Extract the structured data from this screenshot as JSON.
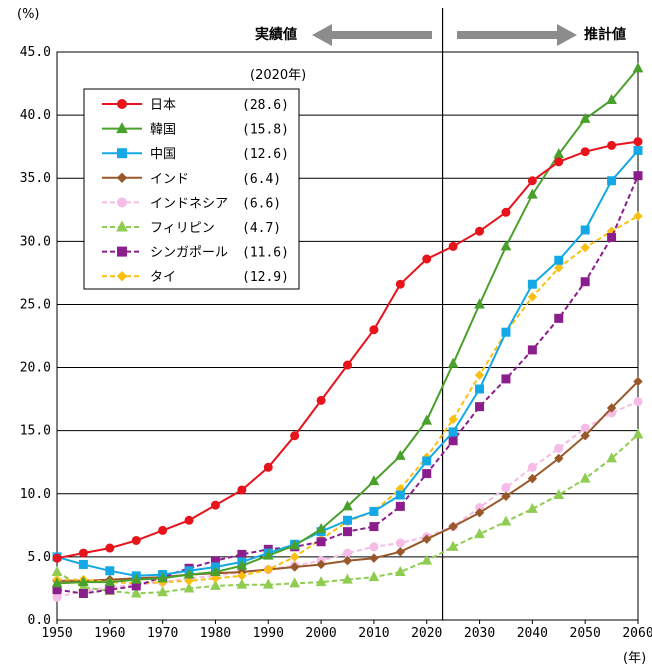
{
  "chart_data": {
    "type": "line",
    "y_unit": "(%)",
    "x_unit": "(年)",
    "legend_header": "(2020年)",
    "divider_year": 2023,
    "actual_label": "実績値",
    "projection_label": "推計値",
    "xlim": [
      1950,
      2060
    ],
    "ylim": [
      0,
      45
    ],
    "x_ticks": [
      "1950",
      "1960",
      "1970",
      "1980",
      "1990",
      "2000",
      "2010",
      "2020",
      "2030",
      "2040",
      "2050",
      "2060"
    ],
    "y_ticks": [
      "0.0",
      "5.0",
      "10.0",
      "15.0",
      "20.0",
      "25.0",
      "30.0",
      "35.0",
      "40.0",
      "45.0"
    ],
    "grid": "horizontal",
    "legend_position": "top-left",
    "x": [
      1950,
      1955,
      1960,
      1965,
      1970,
      1975,
      1980,
      1985,
      1990,
      1995,
      2000,
      2005,
      2010,
      2015,
      2020,
      2025,
      2030,
      2035,
      2040,
      2045,
      2050,
      2055,
      2060
    ],
    "series": [
      {
        "name": "日本",
        "value_2020": "(28.6)",
        "color": "#e8131b",
        "marker": "circle",
        "dash": false,
        "values": [
          4.9,
          5.3,
          5.7,
          6.3,
          7.1,
          7.9,
          9.1,
          10.3,
          12.1,
          14.6,
          17.4,
          20.2,
          23.0,
          26.6,
          28.6,
          29.6,
          30.8,
          32.3,
          34.8,
          36.3,
          37.1,
          37.6,
          37.9
        ]
      },
      {
        "name": "韓国",
        "value_2020": "(15.8)",
        "color": "#4aa02c",
        "marker": "triangle",
        "dash": false,
        "values": [
          2.9,
          3.0,
          3.0,
          3.2,
          3.3,
          3.6,
          3.8,
          4.3,
          5.1,
          5.9,
          7.2,
          9.0,
          11.0,
          13.0,
          15.8,
          20.3,
          25.0,
          29.6,
          33.7,
          36.9,
          39.7,
          41.2,
          43.7
        ]
      },
      {
        "name": "中国",
        "value_2020": "(12.6)",
        "color": "#14a9e6",
        "marker": "square",
        "dash": false,
        "values": [
          5.0,
          4.4,
          3.9,
          3.5,
          3.6,
          3.9,
          4.2,
          4.6,
          5.3,
          6.0,
          7.0,
          7.9,
          8.6,
          9.9,
          12.6,
          14.9,
          18.3,
          22.8,
          26.6,
          28.5,
          30.9,
          34.8,
          37.2
        ]
      },
      {
        "name": "インド",
        "value_2020": "(6.4)",
        "color": "#99582a",
        "marker": "diamond",
        "dash": false,
        "values": [
          3.1,
          3.1,
          3.2,
          3.3,
          3.4,
          3.6,
          3.7,
          3.8,
          4.0,
          4.2,
          4.4,
          4.7,
          4.9,
          5.4,
          6.4,
          7.4,
          8.5,
          9.8,
          11.2,
          12.8,
          14.6,
          16.8,
          18.9
        ]
      },
      {
        "name": "インドネシア",
        "value_2020": "(6.6)",
        "color": "#f4bce6",
        "marker": "circle",
        "dash": true,
        "values": [
          1.8,
          2.3,
          2.6,
          2.8,
          3.0,
          3.3,
          3.5,
          3.8,
          4.0,
          4.3,
          4.7,
          5.3,
          5.8,
          6.1,
          6.6,
          7.4,
          8.9,
          10.5,
          12.1,
          13.6,
          15.2,
          16.4,
          17.3
        ]
      },
      {
        "name": "フィリピン",
        "value_2020": "(4.7)",
        "color": "#8fcc52",
        "marker": "triangle",
        "dash": true,
        "values": [
          3.8,
          2.6,
          2.3,
          2.1,
          2.2,
          2.5,
          2.7,
          2.8,
          2.8,
          2.9,
          3.0,
          3.2,
          3.4,
          3.8,
          4.7,
          5.8,
          6.8,
          7.8,
          8.8,
          9.9,
          11.2,
          12.8,
          14.7
        ]
      },
      {
        "name": "シンガポール",
        "value_2020": "(11.6)",
        "color": "#8b1e8c",
        "marker": "square",
        "dash": true,
        "values": [
          2.4,
          2.1,
          2.4,
          2.7,
          3.4,
          4.1,
          4.7,
          5.2,
          5.6,
          5.8,
          6.2,
          7.0,
          7.4,
          9.0,
          11.6,
          14.2,
          16.9,
          19.1,
          21.4,
          23.9,
          26.8,
          30.3,
          35.2
        ]
      },
      {
        "name": "タイ",
        "value_2020": "(12.9)",
        "color": "#fbbf12",
        "marker": "diamond",
        "dash": true,
        "values": [
          3.2,
          3.2,
          3.0,
          2.9,
          3.0,
          3.1,
          3.3,
          3.5,
          4.0,
          5.0,
          6.4,
          7.8,
          8.6,
          10.4,
          12.9,
          15.9,
          19.4,
          22.8,
          25.6,
          27.9,
          29.5,
          30.8,
          32.0
        ]
      }
    ]
  }
}
